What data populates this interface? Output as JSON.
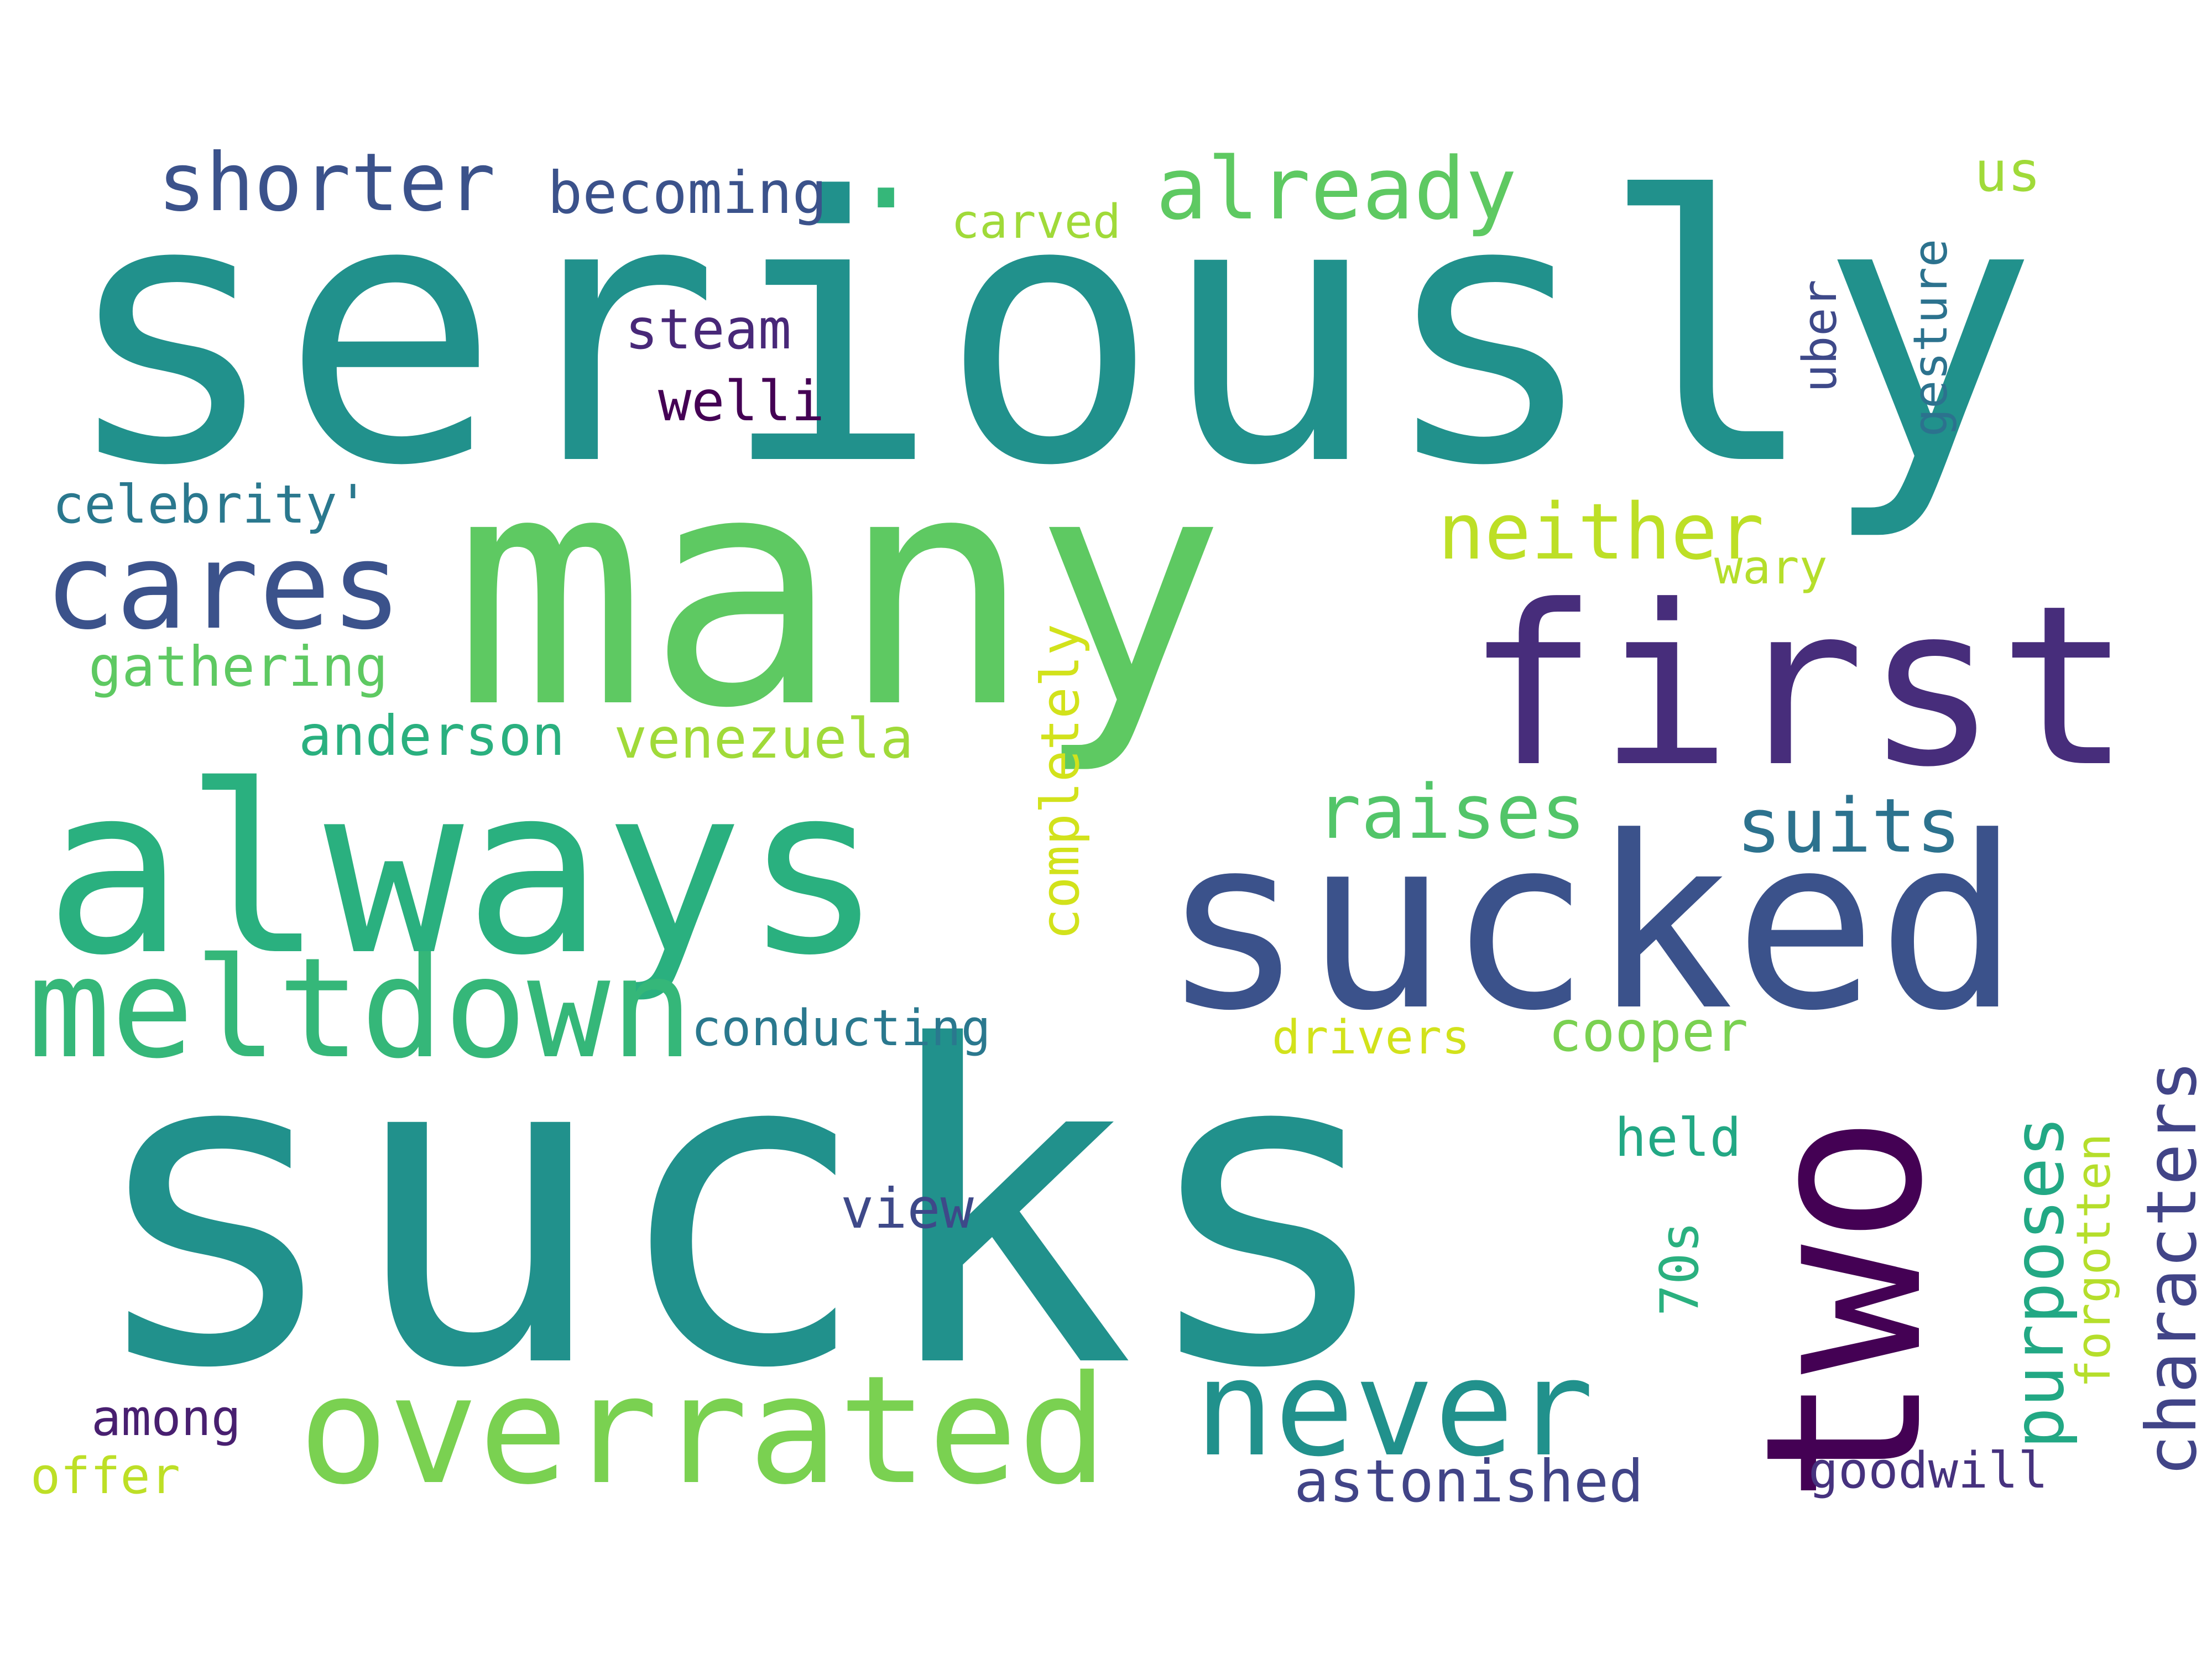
{
  "words": [
    {
      "text": "seriously",
      "color": "#21918c",
      "orient": "h"
    },
    {
      "text": "sucks",
      "color": "#21918c",
      "orient": "h"
    },
    {
      "text": "many",
      "color": "#5ec962",
      "orient": "h"
    },
    {
      "text": "first",
      "color": "#472d7b",
      "orient": "h"
    },
    {
      "text": "sucked",
      "color": "#3b528b",
      "orient": "h"
    },
    {
      "text": "always",
      "color": "#2ab07f",
      "orient": "h"
    },
    {
      "text": "two",
      "color": "#440154",
      "orient": "v"
    },
    {
      "text": "overrated",
      "color": "#7ad151",
      "orient": "h"
    },
    {
      "text": "meltdown",
      "color": "#35b779",
      "orient": "h"
    },
    {
      "text": "never",
      "color": "#21918c",
      "orient": "h"
    },
    {
      "text": "cares",
      "color": "#3b528b",
      "orient": "h"
    },
    {
      "text": "already",
      "color": "#5ec962",
      "orient": "h"
    },
    {
      "text": "shorter",
      "color": "#3b528b",
      "orient": "h"
    },
    {
      "text": "neither",
      "color": "#bddf26",
      "orient": "h"
    },
    {
      "text": "raises",
      "color": "#52c569",
      "orient": "h"
    },
    {
      "text": "suits",
      "color": "#2c728e",
      "orient": "h"
    },
    {
      "text": "characters",
      "color": "#414487",
      "orient": "v"
    },
    {
      "text": "purposes",
      "color": "#22a884",
      "orient": "v"
    },
    {
      "text": "completely",
      "color": "#d2e21b",
      "orient": "v"
    },
    {
      "text": "forgotten",
      "color": "#b5de2b",
      "orient": "v"
    },
    {
      "text": "becoming",
      "color": "#3b528b",
      "orient": "h"
    },
    {
      "text": "venezuela",
      "color": "#a0da39",
      "orient": "h"
    },
    {
      "text": "anderson",
      "color": "#2ab07f",
      "orient": "h"
    },
    {
      "text": "celebrity'",
      "color": "#2a788e",
      "orient": "h"
    },
    {
      "text": "gathering",
      "color": "#5ec962",
      "orient": "h"
    },
    {
      "text": "conducting",
      "color": "#2a788e",
      "orient": "h"
    },
    {
      "text": "cooper",
      "color": "#7ad151",
      "orient": "h"
    },
    {
      "text": "astonished",
      "color": "#414487",
      "orient": "h"
    },
    {
      "text": "steam",
      "color": "#482878",
      "orient": "h"
    },
    {
      "text": "welli",
      "color": "#440154",
      "orient": "h"
    },
    {
      "text": "carved",
      "color": "#a0da39",
      "orient": "h"
    },
    {
      "text": "view",
      "color": "#3e4989",
      "orient": "h"
    },
    {
      "text": "among",
      "color": "#481f70",
      "orient": "h"
    },
    {
      "text": "held",
      "color": "#22a884",
      "orient": "h"
    },
    {
      "text": "70s",
      "color": "#2ab07f",
      "orient": "v"
    },
    {
      "text": "drivers",
      "color": "#d2e21b",
      "orient": "h"
    },
    {
      "text": "goodwill",
      "color": "#46327e",
      "orient": "h"
    },
    {
      "text": "offer",
      "color": "#bddf26",
      "orient": "h"
    },
    {
      "text": "uber",
      "color": "#3e4989",
      "orient": "v"
    },
    {
      "text": "gesture",
      "color": "#2c728e",
      "orient": "v"
    },
    {
      "text": "wary",
      "color": "#b5de2b",
      "orient": "h"
    },
    {
      "text": "us",
      "color": "#a0da39",
      "orient": "h"
    },
    {
      "text": ".",
      "color": "#35b779",
      "orient": "h"
    }
  ]
}
